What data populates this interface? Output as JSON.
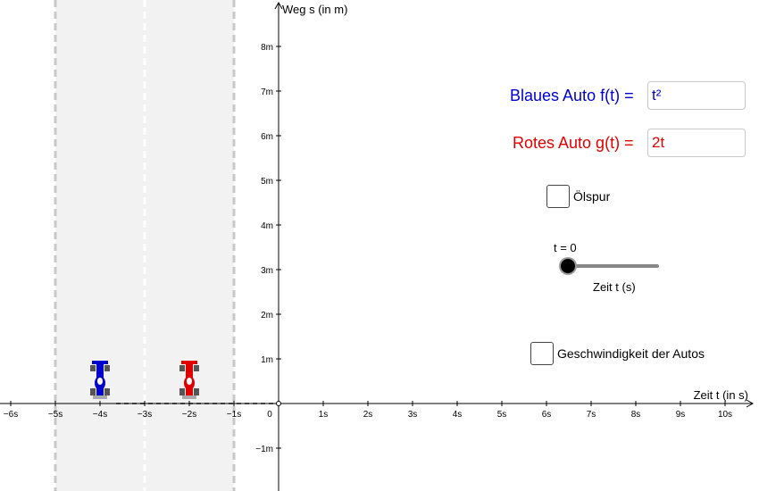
{
  "graph": {
    "x_axis_label": "Zeit t (in s)",
    "y_axis_label": "Weg s (in m)",
    "x_ticks": [
      "−6s",
      "−5s",
      "−4s",
      "−3s",
      "−2s",
      "−1s",
      "0",
      "1s",
      "2s",
      "3s",
      "4s",
      "5s",
      "6s",
      "7s",
      "8s",
      "9s",
      "10s"
    ],
    "y_ticks": [
      "8m",
      "7m",
      "6m",
      "5m",
      "4m",
      "3m",
      "2m",
      "1m",
      "−1m"
    ],
    "track_color": "#f2f2f2",
    "lane_line_color": "#c8c8c8"
  },
  "cars": {
    "blue": {
      "color": "#0000cc",
      "label": "blue-car"
    },
    "red": {
      "color": "#e00000",
      "label": "red-car"
    }
  },
  "functions": {
    "blue_label": "Blaues Auto f(t) =",
    "blue_value": "t²",
    "blue_color": "#0000cc",
    "red_label": "Rotes Auto g(t) =",
    "red_value": "2t",
    "red_color": "#e00000"
  },
  "controls": {
    "oil_trace_label": "Ölspur",
    "slider_value_text": "t = 0",
    "slider_caption": "Zeit t (s)",
    "slider_value": 0,
    "speed_label": "Geschwindigkeit der Autos"
  }
}
